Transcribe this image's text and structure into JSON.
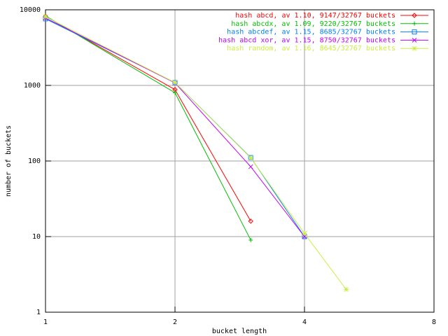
{
  "chart_data": {
    "type": "line",
    "x_label": "bucket length",
    "y_label": "number of buckets",
    "x": [
      1,
      2,
      3,
      4,
      5
    ],
    "xlim": [
      1,
      8
    ],
    "xticks": [
      1,
      2,
      4,
      8
    ],
    "xlog": true,
    "ylim": [
      1,
      10000
    ],
    "yticks": [
      1,
      10,
      100,
      1000,
      10000
    ],
    "ylog": true,
    "grid": true,
    "legend": "top-right",
    "series": [
      {
        "name": "hash abcd, av 1.10, 9147/32767 buckets",
        "color": "#ff0000",
        "marker": "diamond",
        "values": [
          8200,
          880,
          16,
          null,
          null
        ]
      },
      {
        "name": "hash abcdx, av 1.09, 9220/32767 buckets",
        "color": "#00c000",
        "marker": "plus",
        "values": [
          8300,
          800,
          9,
          null,
          null
        ]
      },
      {
        "name": "hash abcdef, av 1.15, 8685/32767 buckets",
        "color": "#0080ff",
        "marker": "square",
        "values": [
          7600,
          1090,
          111,
          10,
          null
        ]
      },
      {
        "name": "hash abcd xor, av 1.15, 8750/32767 buckets",
        "color": "#c000ff",
        "marker": "cross",
        "values": [
          7800,
          1080,
          84,
          10,
          null
        ]
      },
      {
        "name": "hash random, av 1.16, 8645/32767 buckets",
        "color": "#c8f040",
        "marker": "star",
        "values": [
          8100,
          1090,
          110,
          11,
          2
        ]
      }
    ]
  }
}
